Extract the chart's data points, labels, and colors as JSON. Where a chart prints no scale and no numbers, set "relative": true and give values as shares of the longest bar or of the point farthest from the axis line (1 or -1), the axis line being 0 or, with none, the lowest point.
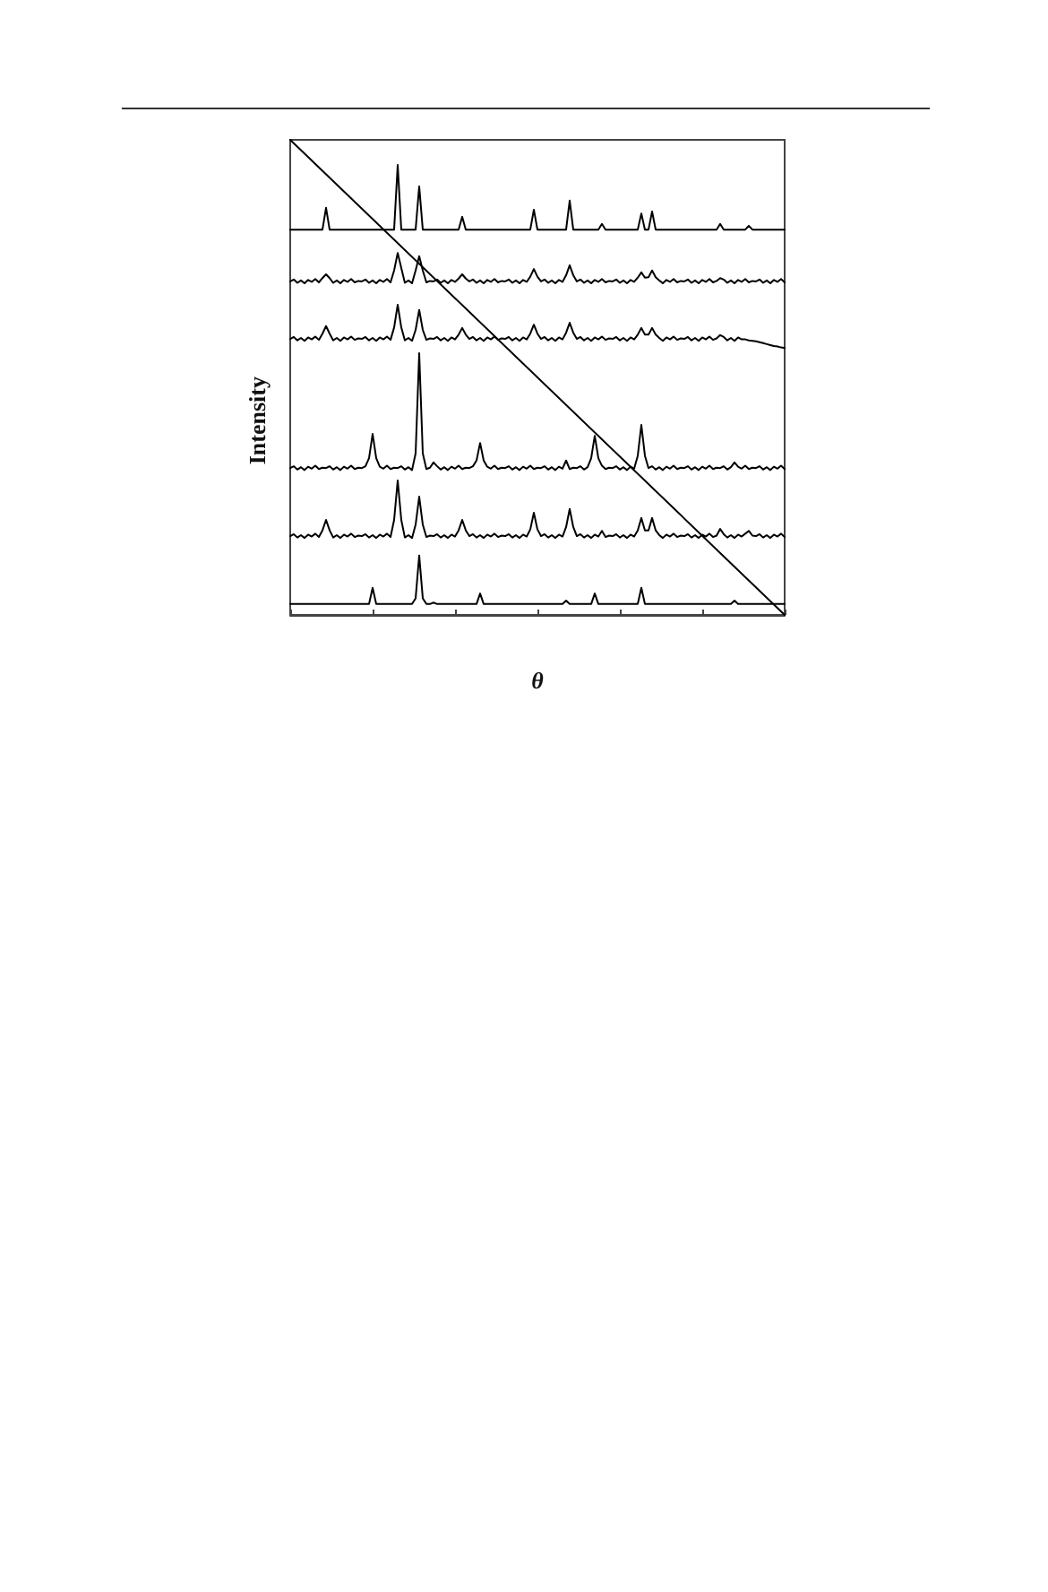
{
  "chart_data": {
    "type": "line",
    "xlabel": "θ",
    "ylabel": "Intensity",
    "relative": true,
    "grid": false,
    "marker": "none",
    "line_style": "solid",
    "categories": [
      null,
      null,
      null,
      null,
      null,
      null,
      null,
      null,
      null,
      null,
      null,
      null,
      null,
      null,
      null,
      null,
      null,
      null,
      null,
      null,
      null,
      null,
      null,
      null,
      null,
      null,
      null,
      null,
      null,
      null,
      null,
      null,
      null,
      null,
      null,
      null,
      null,
      null,
      null,
      null,
      null,
      null,
      null,
      null,
      null,
      null,
      null,
      null,
      null,
      null,
      null,
      null,
      null,
      null,
      null,
      null,
      null,
      null,
      null,
      null,
      null,
      null,
      null,
      null,
      null,
      null,
      null,
      null,
      null,
      null,
      null,
      null,
      null,
      null,
      null,
      null,
      null,
      null,
      null,
      null,
      null,
      null,
      null,
      null,
      null,
      null,
      null,
      null,
      null,
      null,
      null,
      null,
      null,
      null,
      null,
      null,
      null,
      null,
      null,
      null,
      null,
      null,
      null,
      null,
      null,
      null,
      null,
      null,
      null,
      null,
      null,
      null,
      null,
      null,
      null,
      null,
      null,
      null,
      null,
      null,
      null,
      null,
      null,
      null,
      null,
      null,
      null,
      null,
      null,
      null,
      null,
      null,
      null,
      null,
      null,
      null,
      null,
      null,
      null
    ],
    "series": [
      {
        "color": "#000000",
        "values": [
          0.811,
          0.811,
          0.811,
          0.811,
          0.811,
          0.811,
          0.811,
          0.811,
          0.811,
          0.811,
          0.857,
          0.811,
          0.811,
          0.811,
          0.811,
          0.811,
          0.811,
          0.811,
          0.811,
          0.811,
          0.811,
          0.811,
          0.811,
          0.811,
          0.811,
          0.811,
          0.811,
          0.811,
          0.811,
          0.811,
          0.947,
          0.811,
          0.811,
          0.811,
          0.811,
          0.811,
          0.902,
          0.811,
          0.811,
          0.811,
          0.811,
          0.811,
          0.811,
          0.811,
          0.811,
          0.811,
          0.811,
          0.811,
          0.838,
          0.811,
          0.811,
          0.811,
          0.811,
          0.811,
          0.811,
          0.811,
          0.811,
          0.811,
          0.811,
          0.811,
          0.811,
          0.811,
          0.811,
          0.811,
          0.811,
          0.811,
          0.811,
          0.811,
          0.853,
          0.811,
          0.811,
          0.811,
          0.811,
          0.811,
          0.811,
          0.811,
          0.811,
          0.811,
          0.872,
          0.811,
          0.811,
          0.811,
          0.811,
          0.811,
          0.811,
          0.811,
          0.811,
          0.823,
          0.811,
          0.811,
          0.811,
          0.811,
          0.811,
          0.811,
          0.811,
          0.811,
          0.811,
          0.811,
          0.845,
          0.811,
          0.811,
          0.849,
          0.811,
          0.811,
          0.811,
          0.811,
          0.811,
          0.811,
          0.811,
          0.811,
          0.811,
          0.811,
          0.811,
          0.811,
          0.811,
          0.811,
          0.811,
          0.811,
          0.811,
          0.811,
          0.823,
          0.811,
          0.811,
          0.811,
          0.811,
          0.811,
          0.811,
          0.811,
          0.819,
          0.811,
          0.811,
          0.811,
          0.811,
          0.811,
          0.811,
          0.811,
          0.811,
          0.811,
          0.811
        ]
      },
      {
        "color": "#000000",
        "values": [
          0.702,
          0.706,
          0.699,
          0.704,
          0.698,
          0.705,
          0.701,
          0.707,
          0.7,
          0.709,
          0.717,
          0.709,
          0.699,
          0.704,
          0.698,
          0.705,
          0.701,
          0.707,
          0.7,
          0.703,
          0.702,
          0.706,
          0.699,
          0.704,
          0.698,
          0.705,
          0.701,
          0.707,
          0.7,
          0.725,
          0.762,
          0.73,
          0.699,
          0.704,
          0.698,
          0.725,
          0.755,
          0.725,
          0.7,
          0.703,
          0.702,
          0.706,
          0.699,
          0.704,
          0.698,
          0.705,
          0.701,
          0.708,
          0.717,
          0.708,
          0.702,
          0.706,
          0.699,
          0.704,
          0.698,
          0.705,
          0.701,
          0.707,
          0.7,
          0.703,
          0.702,
          0.706,
          0.699,
          0.704,
          0.698,
          0.705,
          0.701,
          0.712,
          0.728,
          0.712,
          0.702,
          0.706,
          0.699,
          0.704,
          0.698,
          0.705,
          0.701,
          0.715,
          0.736,
          0.715,
          0.702,
          0.706,
          0.699,
          0.704,
          0.698,
          0.705,
          0.701,
          0.707,
          0.7,
          0.703,
          0.702,
          0.706,
          0.699,
          0.704,
          0.698,
          0.705,
          0.701,
          0.71,
          0.721,
          0.71,
          0.711,
          0.725,
          0.711,
          0.704,
          0.698,
          0.705,
          0.701,
          0.707,
          0.7,
          0.703,
          0.702,
          0.706,
          0.699,
          0.704,
          0.698,
          0.705,
          0.701,
          0.707,
          0.7,
          0.703,
          0.709,
          0.706,
          0.699,
          0.704,
          0.698,
          0.705,
          0.701,
          0.707,
          0.7,
          0.703,
          0.702,
          0.706,
          0.699,
          0.704,
          0.698,
          0.705,
          0.701,
          0.707,
          0.7
        ]
      },
      {
        "color": "#000000",
        "values": [
          0.581,
          0.585,
          0.578,
          0.583,
          0.577,
          0.584,
          0.58,
          0.586,
          0.579,
          0.592,
          0.608,
          0.592,
          0.578,
          0.583,
          0.577,
          0.584,
          0.58,
          0.586,
          0.579,
          0.582,
          0.581,
          0.585,
          0.578,
          0.583,
          0.577,
          0.584,
          0.58,
          0.586,
          0.579,
          0.605,
          0.653,
          0.605,
          0.578,
          0.583,
          0.577,
          0.6,
          0.642,
          0.6,
          0.579,
          0.582,
          0.581,
          0.585,
          0.578,
          0.583,
          0.577,
          0.584,
          0.58,
          0.59,
          0.604,
          0.59,
          0.581,
          0.585,
          0.578,
          0.583,
          0.577,
          0.584,
          0.58,
          0.586,
          0.579,
          0.582,
          0.581,
          0.585,
          0.578,
          0.583,
          0.577,
          0.584,
          0.58,
          0.592,
          0.611,
          0.592,
          0.581,
          0.585,
          0.578,
          0.583,
          0.577,
          0.584,
          0.58,
          0.594,
          0.615,
          0.594,
          0.581,
          0.585,
          0.578,
          0.583,
          0.577,
          0.584,
          0.58,
          0.586,
          0.579,
          0.582,
          0.581,
          0.585,
          0.578,
          0.583,
          0.577,
          0.584,
          0.58,
          0.59,
          0.604,
          0.59,
          0.59,
          0.604,
          0.59,
          0.583,
          0.577,
          0.584,
          0.58,
          0.586,
          0.579,
          0.582,
          0.581,
          0.585,
          0.578,
          0.583,
          0.577,
          0.584,
          0.58,
          0.586,
          0.579,
          0.582,
          0.589,
          0.585,
          0.578,
          0.583,
          0.577,
          0.584,
          0.58,
          0.58,
          0.578,
          0.577,
          0.576,
          0.574,
          0.572,
          0.57,
          0.568,
          0.566,
          0.565,
          0.563,
          0.562
        ]
      },
      {
        "color": "#000000",
        "values": [
          0.309,
          0.313,
          0.306,
          0.311,
          0.305,
          0.312,
          0.308,
          0.314,
          0.307,
          0.31,
          0.309,
          0.313,
          0.306,
          0.311,
          0.305,
          0.312,
          0.308,
          0.314,
          0.307,
          0.31,
          0.309,
          0.313,
          0.33,
          0.381,
          0.33,
          0.312,
          0.308,
          0.314,
          0.307,
          0.31,
          0.309,
          0.313,
          0.306,
          0.311,
          0.305,
          0.34,
          0.551,
          0.34,
          0.307,
          0.31,
          0.321,
          0.313,
          0.306,
          0.311,
          0.305,
          0.312,
          0.308,
          0.314,
          0.307,
          0.31,
          0.309,
          0.313,
          0.325,
          0.362,
          0.325,
          0.312,
          0.308,
          0.314,
          0.307,
          0.31,
          0.309,
          0.313,
          0.306,
          0.311,
          0.305,
          0.312,
          0.308,
          0.314,
          0.307,
          0.31,
          0.309,
          0.313,
          0.306,
          0.311,
          0.305,
          0.312,
          0.308,
          0.325,
          0.307,
          0.31,
          0.309,
          0.313,
          0.306,
          0.311,
          0.33,
          0.377,
          0.33,
          0.314,
          0.307,
          0.31,
          0.309,
          0.313,
          0.306,
          0.311,
          0.305,
          0.312,
          0.308,
          0.335,
          0.4,
          0.335,
          0.309,
          0.313,
          0.306,
          0.311,
          0.305,
          0.312,
          0.308,
          0.314,
          0.307,
          0.31,
          0.309,
          0.313,
          0.306,
          0.311,
          0.305,
          0.312,
          0.308,
          0.314,
          0.307,
          0.31,
          0.309,
          0.313,
          0.306,
          0.311,
          0.321,
          0.312,
          0.308,
          0.314,
          0.307,
          0.31,
          0.309,
          0.313,
          0.306,
          0.311,
          0.305,
          0.312,
          0.308,
          0.314,
          0.307
        ]
      },
      {
        "color": "#000000",
        "values": [
          0.166,
          0.17,
          0.163,
          0.168,
          0.162,
          0.169,
          0.165,
          0.171,
          0.164,
          0.178,
          0.2,
          0.178,
          0.163,
          0.168,
          0.162,
          0.169,
          0.165,
          0.171,
          0.164,
          0.167,
          0.166,
          0.17,
          0.163,
          0.168,
          0.162,
          0.169,
          0.165,
          0.171,
          0.164,
          0.2,
          0.283,
          0.2,
          0.163,
          0.168,
          0.162,
          0.19,
          0.249,
          0.19,
          0.164,
          0.167,
          0.166,
          0.17,
          0.163,
          0.168,
          0.162,
          0.169,
          0.165,
          0.178,
          0.2,
          0.178,
          0.166,
          0.17,
          0.163,
          0.168,
          0.162,
          0.169,
          0.165,
          0.171,
          0.164,
          0.167,
          0.166,
          0.17,
          0.163,
          0.168,
          0.162,
          0.169,
          0.165,
          0.18,
          0.215,
          0.18,
          0.166,
          0.17,
          0.163,
          0.168,
          0.162,
          0.169,
          0.165,
          0.185,
          0.223,
          0.185,
          0.166,
          0.17,
          0.163,
          0.168,
          0.162,
          0.169,
          0.165,
          0.177,
          0.164,
          0.167,
          0.166,
          0.17,
          0.163,
          0.168,
          0.162,
          0.169,
          0.165,
          0.178,
          0.204,
          0.178,
          0.178,
          0.204,
          0.178,
          0.168,
          0.162,
          0.169,
          0.165,
          0.171,
          0.164,
          0.167,
          0.166,
          0.17,
          0.163,
          0.168,
          0.162,
          0.169,
          0.165,
          0.171,
          0.164,
          0.167,
          0.181,
          0.17,
          0.163,
          0.168,
          0.162,
          0.169,
          0.165,
          0.171,
          0.177,
          0.167,
          0.166,
          0.17,
          0.163,
          0.168,
          0.162,
          0.169,
          0.165,
          0.171,
          0.164
        ]
      },
      {
        "color": "#000000",
        "values": [
          0.023,
          0.023,
          0.023,
          0.023,
          0.023,
          0.023,
          0.023,
          0.023,
          0.023,
          0.023,
          0.023,
          0.023,
          0.023,
          0.023,
          0.023,
          0.023,
          0.023,
          0.023,
          0.023,
          0.023,
          0.023,
          0.023,
          0.023,
          0.057,
          0.023,
          0.023,
          0.023,
          0.023,
          0.023,
          0.023,
          0.023,
          0.023,
          0.023,
          0.023,
          0.023,
          0.035,
          0.125,
          0.035,
          0.023,
          0.023,
          0.026,
          0.023,
          0.023,
          0.023,
          0.023,
          0.023,
          0.023,
          0.023,
          0.023,
          0.023,
          0.023,
          0.023,
          0.023,
          0.045,
          0.023,
          0.023,
          0.023,
          0.023,
          0.023,
          0.023,
          0.023,
          0.023,
          0.023,
          0.023,
          0.023,
          0.023,
          0.023,
          0.023,
          0.023,
          0.023,
          0.023,
          0.023,
          0.023,
          0.023,
          0.023,
          0.023,
          0.023,
          0.03,
          0.023,
          0.023,
          0.023,
          0.023,
          0.023,
          0.023,
          0.023,
          0.045,
          0.023,
          0.023,
          0.023,
          0.023,
          0.023,
          0.023,
          0.023,
          0.023,
          0.023,
          0.023,
          0.023,
          0.023,
          0.057,
          0.023,
          0.023,
          0.023,
          0.023,
          0.023,
          0.023,
          0.023,
          0.023,
          0.023,
          0.023,
          0.023,
          0.023,
          0.023,
          0.023,
          0.023,
          0.023,
          0.023,
          0.023,
          0.023,
          0.023,
          0.023,
          0.023,
          0.023,
          0.023,
          0.023,
          0.03,
          0.023,
          0.023,
          0.023,
          0.023,
          0.023,
          0.023,
          0.023,
          0.023,
          0.023,
          0.023,
          0.023,
          0.023,
          0.023,
          0.023
        ]
      },
      {
        "color": "#000000",
        "values": [
          1,
          null,
          null,
          null,
          null,
          null,
          null,
          null,
          null,
          null,
          null,
          null,
          null,
          null,
          null,
          null,
          null,
          null,
          null,
          null,
          null,
          null,
          null,
          null,
          null,
          null,
          null,
          null,
          null,
          null,
          null,
          null,
          null,
          null,
          null,
          null,
          null,
          null,
          null,
          null,
          null,
          null,
          null,
          null,
          null,
          null,
          null,
          null,
          null,
          null,
          null,
          null,
          null,
          null,
          null,
          null,
          null,
          null,
          null,
          null,
          null,
          null,
          null,
          null,
          null,
          null,
          null,
          null,
          null,
          null,
          null,
          null,
          null,
          null,
          null,
          null,
          null,
          null,
          null,
          null,
          null,
          null,
          null,
          null,
          null,
          null,
          null,
          null,
          null,
          null,
          null,
          null,
          null,
          null,
          null,
          null,
          null,
          null,
          null,
          null,
          null,
          null,
          null,
          null,
          null,
          null,
          null,
          null,
          null,
          null,
          null,
          null,
          null,
          null,
          null,
          null,
          null,
          null,
          null,
          null,
          null,
          null,
          null,
          null,
          null,
          null,
          null,
          null,
          null,
          null,
          null,
          null,
          null,
          null,
          null,
          null,
          null,
          null,
          0
        ]
      }
    ]
  }
}
